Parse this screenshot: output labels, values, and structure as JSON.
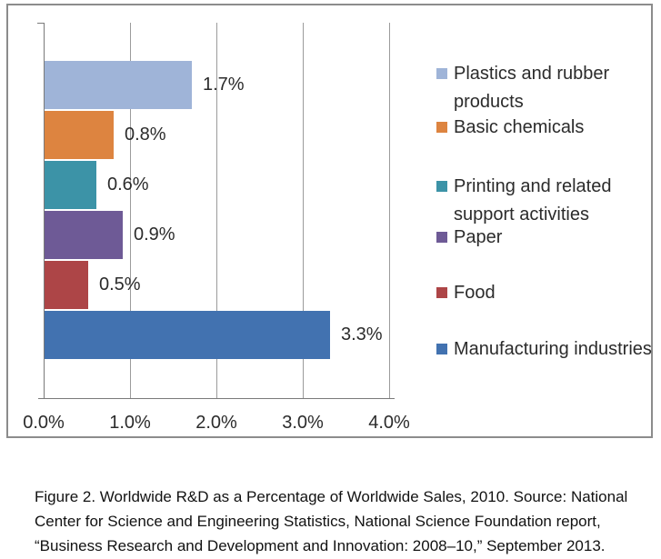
{
  "chart_data": {
    "type": "bar",
    "orientation": "horizontal",
    "title": "",
    "xlabel": "",
    "ylabel": "",
    "xlim": [
      0,
      4
    ],
    "grid": "vertical",
    "legend_position": "right",
    "categories": [
      "Plastics and rubber products",
      "Basic chemicals",
      "Printing and related support activities",
      "Paper",
      "Food",
      "Manufacturing industries"
    ],
    "values": [
      1.7,
      0.8,
      0.6,
      0.9,
      0.5,
      3.3
    ],
    "data_labels": [
      "1.7%",
      "0.8%",
      "0.6%",
      "0.9%",
      "0.5%",
      "3.3%"
    ],
    "colors": [
      "#9fb4d8",
      "#dd8440",
      "#3c93a7",
      "#6e5a96",
      "#ad4547",
      "#4272b0"
    ],
    "x_tick_values": [
      0,
      1,
      2,
      3,
      4
    ],
    "x_tick_labels": [
      "0.0%",
      "1.0%",
      "2.0%",
      "3.0%",
      "4.0%"
    ],
    "legend": [
      {
        "label": "Plastics and rubber products",
        "color": "#9fb4d8"
      },
      {
        "label": "Basic chemicals",
        "color": "#dd8440"
      },
      {
        "label": "Printing and related support activities",
        "color": "#3c93a7"
      },
      {
        "label": "Paper",
        "color": "#6e5a96"
      },
      {
        "label": "Food",
        "color": "#ad4547"
      },
      {
        "label": "Manufacturing industries",
        "color": "#4272b0"
      }
    ]
  },
  "caption": {
    "text": "Figure 2. Worldwide R&D as a Percentage of Worldwide Sales, 2010. Source: National Center for Science and Engineering Statistics, National Science Foundation report, “Business Research and Development and Innovation: 2008–10,” September 2013."
  }
}
